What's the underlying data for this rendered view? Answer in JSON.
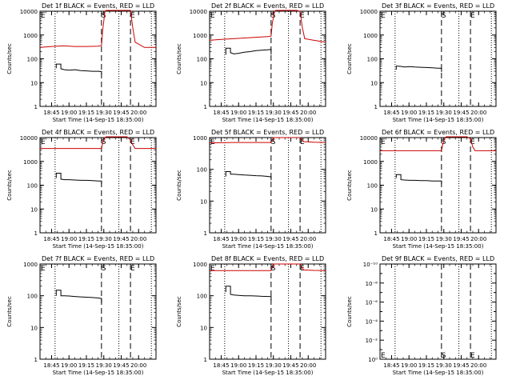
{
  "figure": {
    "xlabel": "Start Time (14-Sep-15 18:35:00)",
    "ylabel": "Counts/sec",
    "x_tick_labels": [
      "18:45",
      "19:00",
      "19:15",
      "19:30",
      "19:45",
      "20:00"
    ],
    "marker_labels": {
      "start": "E",
      "saa_in": "S",
      "saa_out": "E"
    },
    "colors": {
      "events": "#000000",
      "lld": "#cc0000",
      "axes": "#000000"
    }
  },
  "chart_data": [
    {
      "type": "line",
      "title": "Det 1f BLACK = Events, RED = LLD",
      "xlim": [
        "18:35",
        "20:15"
      ],
      "y_scale": "log",
      "ylim": [
        1,
        10000
      ],
      "yticks": [
        1,
        10,
        100,
        1000,
        10000
      ],
      "ytick_labels": [
        "1",
        "10",
        "100",
        "1000",
        "10000"
      ],
      "markers": {
        "dotted": [
          "18:48",
          "19:43",
          "20:11"
        ],
        "dashed": [
          "19:28",
          "19:53"
        ],
        "labels_at": [
          "18:35",
          "19:30",
          "19:55"
        ]
      },
      "series": [
        {
          "name": "Events",
          "color": "#000000",
          "x": [
            "18:49",
            "18:49",
            "18:53",
            "18:53",
            "18:56",
            "19:00",
            "19:05",
            "19:10",
            "19:15",
            "19:20",
            "19:25",
            "19:28",
            "19:28"
          ],
          "y": [
            40,
            60,
            60,
            38,
            35,
            33,
            35,
            32,
            31,
            30,
            30,
            29,
            22
          ]
        },
        {
          "name": "LLD",
          "color": "#cc0000",
          "x": [
            "18:35",
            "18:45",
            "18:55",
            "19:05",
            "19:15",
            "19:25",
            "19:28",
            "19:29",
            "19:31",
            "19:32",
            "19:50",
            "19:53",
            "19:55",
            "19:57",
            "20:05",
            "20:15"
          ],
          "y": [
            300,
            330,
            350,
            330,
            330,
            340,
            360,
            1500,
            10000,
            13000,
            13000,
            12000,
            2000,
            500,
            300,
            300
          ]
        }
      ]
    },
    {
      "type": "line",
      "title": "Det 2f BLACK = Events, RED = LLD",
      "xlim": [
        "18:35",
        "20:15"
      ],
      "y_scale": "log",
      "ylim": [
        1,
        10000
      ],
      "yticks": [
        1,
        10,
        100,
        1000,
        10000
      ],
      "ytick_labels": [
        "1",
        "10",
        "100",
        "1000",
        "10000"
      ],
      "markers": {
        "dotted": [
          "18:48",
          "19:43",
          "20:11"
        ],
        "dashed": [
          "19:28",
          "19:53"
        ],
        "labels_at": [
          "18:35",
          "19:30",
          "19:55"
        ]
      },
      "series": [
        {
          "name": "Events",
          "color": "#000000",
          "x": [
            "18:49",
            "18:49",
            "18:53",
            "18:53",
            "18:56",
            "19:00",
            "19:05",
            "19:10",
            "19:15",
            "19:20",
            "19:25",
            "19:28",
            "19:28"
          ],
          "y": [
            150,
            280,
            280,
            180,
            160,
            170,
            190,
            200,
            220,
            230,
            240,
            250,
            150
          ]
        },
        {
          "name": "LLD",
          "color": "#cc0000",
          "x": [
            "18:35",
            "18:45",
            "18:55",
            "19:05",
            "19:15",
            "19:25",
            "19:28",
            "19:29",
            "19:31",
            "19:32",
            "19:50",
            "19:53",
            "19:55",
            "19:57",
            "20:05",
            "20:15"
          ],
          "y": [
            600,
            650,
            700,
            750,
            800,
            850,
            900,
            3000,
            10000,
            13000,
            13000,
            10000,
            2000,
            700,
            600,
            500
          ]
        }
      ]
    },
    {
      "type": "line",
      "title": "Det 3f BLACK = Events, RED = LLD",
      "xlim": [
        "18:35",
        "20:15"
      ],
      "y_scale": "log",
      "ylim": [
        1,
        10000
      ],
      "yticks": [
        1,
        10,
        100,
        1000,
        10000
      ],
      "ytick_labels": [
        "1",
        "10",
        "100",
        "1000",
        "10000"
      ],
      "markers": {
        "dotted": [
          "18:48",
          "19:43",
          "20:11"
        ],
        "dashed": [
          "19:28",
          "19:53"
        ],
        "labels_at": [
          "18:35",
          "19:30",
          "19:55"
        ]
      },
      "series": [
        {
          "name": "Events",
          "color": "#000000",
          "x": [
            "18:49",
            "18:49",
            "18:53",
            "18:56",
            "19:00",
            "19:05",
            "19:10",
            "19:15",
            "19:20",
            "19:25",
            "19:28",
            "19:28"
          ],
          "y": [
            35,
            50,
            48,
            45,
            47,
            45,
            44,
            43,
            42,
            40,
            40,
            28
          ]
        }
      ]
    },
    {
      "type": "line",
      "title": "Det 4f BLACK = Events, RED = LLD",
      "xlim": [
        "18:35",
        "20:15"
      ],
      "y_scale": "log",
      "ylim": [
        1,
        10000
      ],
      "yticks": [
        1,
        10,
        100,
        1000,
        10000
      ],
      "ytick_labels": [
        "1",
        "10",
        "100",
        "1000",
        "10000"
      ],
      "markers": {
        "dotted": [
          "18:48",
          "19:43",
          "20:11"
        ],
        "dashed": [
          "19:28",
          "19:53"
        ],
        "labels_at": [
          "18:35",
          "19:30",
          "19:55"
        ]
      },
      "series": [
        {
          "name": "Events",
          "color": "#000000",
          "x": [
            "18:49",
            "18:49",
            "18:53",
            "18:53",
            "18:56",
            "19:00",
            "19:05",
            "19:10",
            "19:15",
            "19:20",
            "19:25",
            "19:28",
            "19:28"
          ],
          "y": [
            200,
            320,
            320,
            180,
            170,
            170,
            165,
            160,
            160,
            155,
            150,
            150,
            110
          ]
        },
        {
          "name": "LLD",
          "color": "#cc0000",
          "x": [
            "18:35",
            "18:45",
            "18:55",
            "19:05",
            "19:15",
            "19:25",
            "19:28",
            "19:29",
            "19:31",
            "19:32",
            "19:50",
            "19:53",
            "19:55",
            "19:57",
            "20:05",
            "20:15"
          ],
          "y": [
            3500,
            3500,
            3500,
            3500,
            3500,
            3500,
            3500,
            6000,
            10000,
            13000,
            12000,
            8000,
            5000,
            3500,
            3500,
            3500
          ]
        }
      ]
    },
    {
      "type": "line",
      "title": "Det 5f BLACK = Events, RED = LLD",
      "xlim": [
        "18:35",
        "20:15"
      ],
      "y_scale": "log",
      "ylim": [
        1,
        1000
      ],
      "yticks": [
        1,
        10,
        100,
        1000
      ],
      "ytick_labels": [
        "1",
        "10",
        "100",
        "1000"
      ],
      "markers": {
        "dotted": [
          "18:48",
          "19:43",
          "20:11"
        ],
        "dashed": [
          "19:28",
          "19:53"
        ],
        "labels_at": [
          "18:35",
          "19:30",
          "19:55"
        ]
      },
      "series": [
        {
          "name": "Events",
          "color": "#000000",
          "x": [
            "18:49",
            "18:49",
            "18:53",
            "18:53",
            "18:56",
            "19:00",
            "19:05",
            "19:10",
            "19:15",
            "19:20",
            "19:25",
            "19:28",
            "19:28"
          ],
          "y": [
            60,
            85,
            85,
            70,
            70,
            68,
            66,
            65,
            63,
            62,
            60,
            58,
            45
          ]
        },
        {
          "name": "LLD",
          "color": "#cc0000",
          "x": [
            "18:35",
            "18:45",
            "18:55",
            "19:05",
            "19:15",
            "19:25",
            "19:28",
            "19:30",
            "19:50",
            "19:53",
            "19:56",
            "20:05",
            "20:15"
          ],
          "y": [
            680,
            690,
            700,
            700,
            700,
            700,
            700,
            1000,
            1000,
            1000,
            750,
            720,
            700
          ]
        }
      ]
    },
    {
      "type": "line",
      "title": "Det 6f BLACK = Events, RED = LLD",
      "xlim": [
        "18:35",
        "20:15"
      ],
      "y_scale": "log",
      "ylim": [
        1,
        10000
      ],
      "yticks": [
        1,
        10,
        100,
        1000,
        10000
      ],
      "ytick_labels": [
        "1",
        "10",
        "100",
        "1000",
        "10000"
      ],
      "markers": {
        "dotted": [
          "18:48",
          "19:43",
          "20:11"
        ],
        "dashed": [
          "19:28",
          "19:53"
        ],
        "labels_at": [
          "18:35",
          "19:30",
          "19:55"
        ]
      },
      "series": [
        {
          "name": "Events",
          "color": "#000000",
          "x": [
            "18:49",
            "18:49",
            "18:53",
            "18:53",
            "18:56",
            "19:00",
            "19:05",
            "19:10",
            "19:15",
            "19:20",
            "19:25",
            "19:28",
            "19:28"
          ],
          "y": [
            200,
            280,
            280,
            170,
            165,
            160,
            160,
            155,
            155,
            150,
            150,
            150,
            110
          ]
        },
        {
          "name": "LLD",
          "color": "#cc0000",
          "x": [
            "18:35",
            "18:45",
            "18:55",
            "19:05",
            "19:15",
            "19:25",
            "19:28",
            "19:29",
            "19:31",
            "19:32",
            "19:50",
            "19:53",
            "19:55",
            "19:57",
            "20:05",
            "20:15"
          ],
          "y": [
            2800,
            2800,
            2800,
            2800,
            2800,
            2800,
            2800,
            5000,
            10000,
            13000,
            12000,
            9000,
            4000,
            2800,
            2800,
            2800
          ]
        }
      ]
    },
    {
      "type": "line",
      "title": "Det 7f BLACK = Events, RED = LLD",
      "xlim": [
        "18:35",
        "20:15"
      ],
      "y_scale": "log",
      "ylim": [
        1,
        1000
      ],
      "yticks": [
        1,
        10,
        100,
        1000
      ],
      "ytick_labels": [
        "1",
        "10",
        "100",
        "1000"
      ],
      "markers": {
        "dotted": [
          "18:48",
          "19:43",
          "20:11"
        ],
        "dashed": [
          "19:28",
          "19:53"
        ],
        "labels_at": [
          "18:35",
          "19:30",
          "19:55"
        ]
      },
      "series": [
        {
          "name": "Events",
          "color": "#000000",
          "x": [
            "18:49",
            "18:49",
            "18:53",
            "18:53",
            "18:56",
            "19:00",
            "19:05",
            "19:10",
            "19:15",
            "19:20",
            "19:25",
            "19:28",
            "19:28"
          ],
          "y": [
            100,
            150,
            150,
            100,
            100,
            98,
            95,
            92,
            90,
            88,
            85,
            82,
            60
          ]
        }
      ]
    },
    {
      "type": "line",
      "title": "Det 8f BLACK = Events, RED = LLD",
      "xlim": [
        "18:35",
        "20:15"
      ],
      "y_scale": "log",
      "ylim": [
        1,
        1000
      ],
      "yticks": [
        1,
        10,
        100,
        1000
      ],
      "ytick_labels": [
        "1",
        "10",
        "100",
        "1000"
      ],
      "markers": {
        "dotted": [
          "18:48",
          "19:43",
          "20:11"
        ],
        "dashed": [
          "19:28",
          "19:53"
        ],
        "labels_at": [
          "18:35",
          "19:30",
          "19:55"
        ]
      },
      "series": [
        {
          "name": "Events",
          "color": "#000000",
          "x": [
            "18:49",
            "18:49",
            "18:53",
            "18:53",
            "18:56",
            "19:00",
            "19:05",
            "19:10",
            "19:15",
            "19:20",
            "19:25",
            "19:28",
            "19:28"
          ],
          "y": [
            130,
            200,
            200,
            110,
            105,
            103,
            100,
            100,
            98,
            96,
            95,
            95,
            70
          ]
        },
        {
          "name": "LLD",
          "color": "#cc0000",
          "x": [
            "18:35",
            "18:45",
            "18:55",
            "19:05",
            "19:15",
            "19:25",
            "19:28",
            "19:30",
            "19:50",
            "19:53",
            "19:56",
            "20:05",
            "20:15"
          ],
          "y": [
            620,
            620,
            620,
            620,
            620,
            620,
            620,
            1000,
            1000,
            1000,
            650,
            630,
            620
          ]
        }
      ]
    },
    {
      "type": "line",
      "title": "Det 9f BLACK = Events, RED = LLD",
      "xlim": [
        "18:35",
        "20:15"
      ],
      "y_scale": "log",
      "ylim": [
        1,
        1e-10
      ],
      "yticks": [
        1,
        0.01,
        0.0001,
        1e-06,
        1e-08,
        1e-10
      ],
      "ytick_labels": [
        "10⁰",
        "10⁻²",
        "10⁻⁴",
        "10⁻⁶",
        "10⁻⁸",
        "10⁻¹⁰"
      ],
      "markers": {
        "dotted": [
          "18:48",
          "19:43",
          "20:11"
        ],
        "dashed": [
          "19:28",
          "19:53"
        ],
        "labels_at": [
          "18:35",
          "19:30",
          "19:55"
        ]
      },
      "series": []
    }
  ]
}
